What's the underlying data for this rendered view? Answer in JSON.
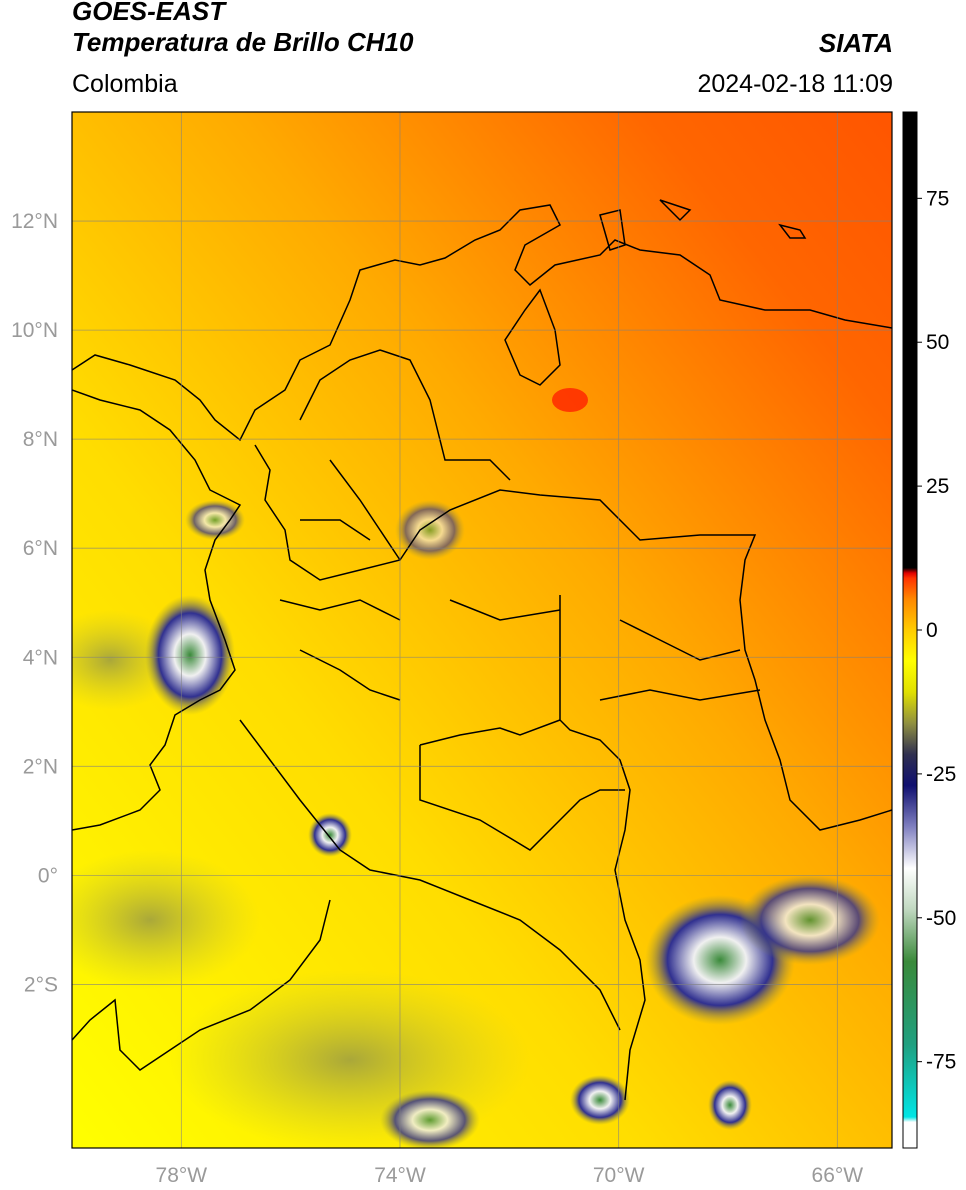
{
  "header": {
    "title_line1": "GOES-EAST",
    "title_line2": "Temperatura de Brillo CH10",
    "region": "Colombia",
    "agency": "SIATA",
    "datetime": "2024-02-18 11:09"
  },
  "map": {
    "lon_range": [
      -80,
      -65
    ],
    "lat_range": [
      -5,
      14
    ],
    "lon_ticks": [
      "78°W",
      "74°W",
      "70°W",
      "66°W"
    ],
    "lon_tick_values": [
      -78,
      -74,
      -70,
      -66
    ],
    "lat_ticks": [
      "12°N",
      "10°N",
      "8°N",
      "6°N",
      "4°N",
      "2°N",
      "0°",
      "2°S"
    ],
    "lat_tick_values": [
      12,
      10,
      8,
      6,
      4,
      2,
      0,
      -2
    ],
    "grid": true
  },
  "colorbar": {
    "range": [
      -90,
      90
    ],
    "tick_labels": [
      "75",
      "50",
      "25",
      "0",
      "-25",
      "-50",
      "-75"
    ],
    "tick_values": [
      75,
      50,
      25,
      0,
      -25,
      -50,
      -75
    ],
    "colors": {
      "warm_hot": "#ff3300",
      "orange": "#ff8800",
      "yellow": "#ffff00",
      "olive": "#9a9a3a",
      "navy": "#101070",
      "white": "#ffffff",
      "green": "#3a8a3a",
      "cyan": "#00e0e0",
      "black": "#000000"
    }
  }
}
